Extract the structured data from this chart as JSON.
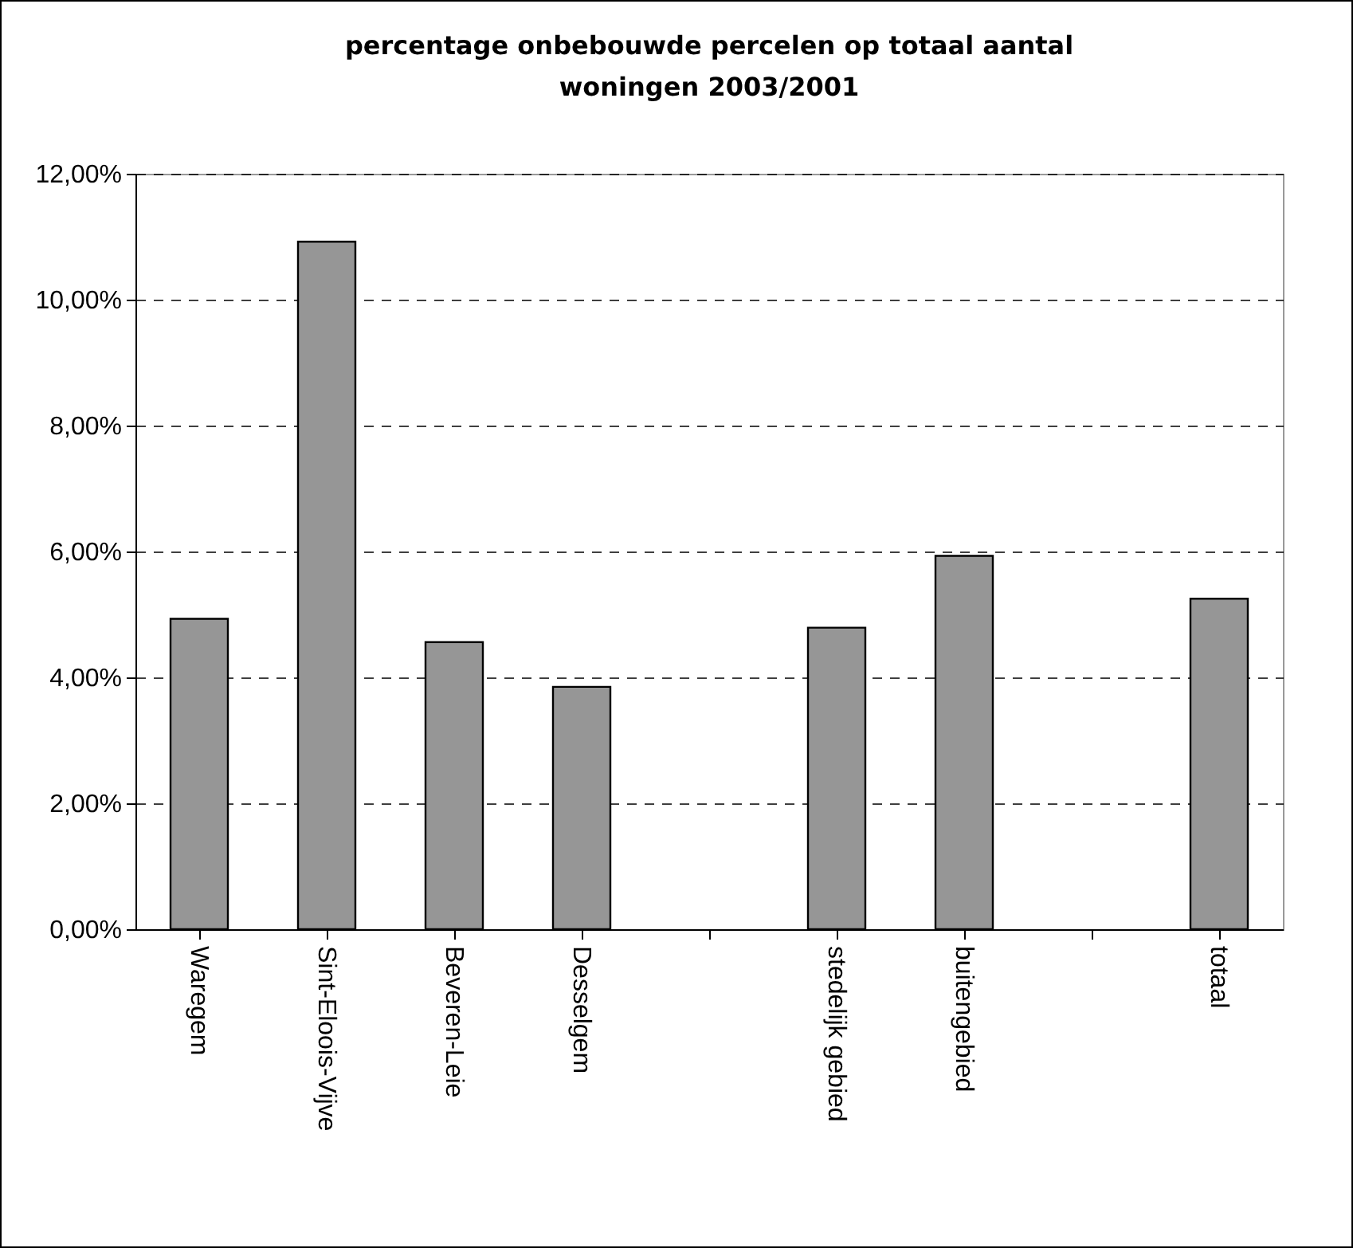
{
  "chart_data": {
    "type": "bar",
    "title": "percentage onbebouwde percelen op totaal aantal woningen 2003/2001",
    "categories": [
      "Waregem",
      "Sint-Eloois-Vijve",
      "Beveren-Leie",
      "Desselgem",
      null,
      "stedelijk gebied",
      "buitengebied",
      null,
      "totaal"
    ],
    "values": [
      4.93,
      10.92,
      4.56,
      3.85,
      null,
      4.79,
      5.93,
      null,
      5.25
    ],
    "color": "#969696",
    "ylim": [
      0,
      12
    ],
    "yticks": [
      {
        "value": 0,
        "label": "0,00%"
      },
      {
        "value": 2,
        "label": "2,00%"
      },
      {
        "value": 4,
        "label": "4,00%"
      },
      {
        "value": 6,
        "label": "6,00%"
      },
      {
        "value": 8,
        "label": "8,00%"
      },
      {
        "value": 10,
        "label": "10,00%"
      },
      {
        "value": 12,
        "label": "12,00%"
      }
    ],
    "grid": "y",
    "line_style": "dashed"
  }
}
